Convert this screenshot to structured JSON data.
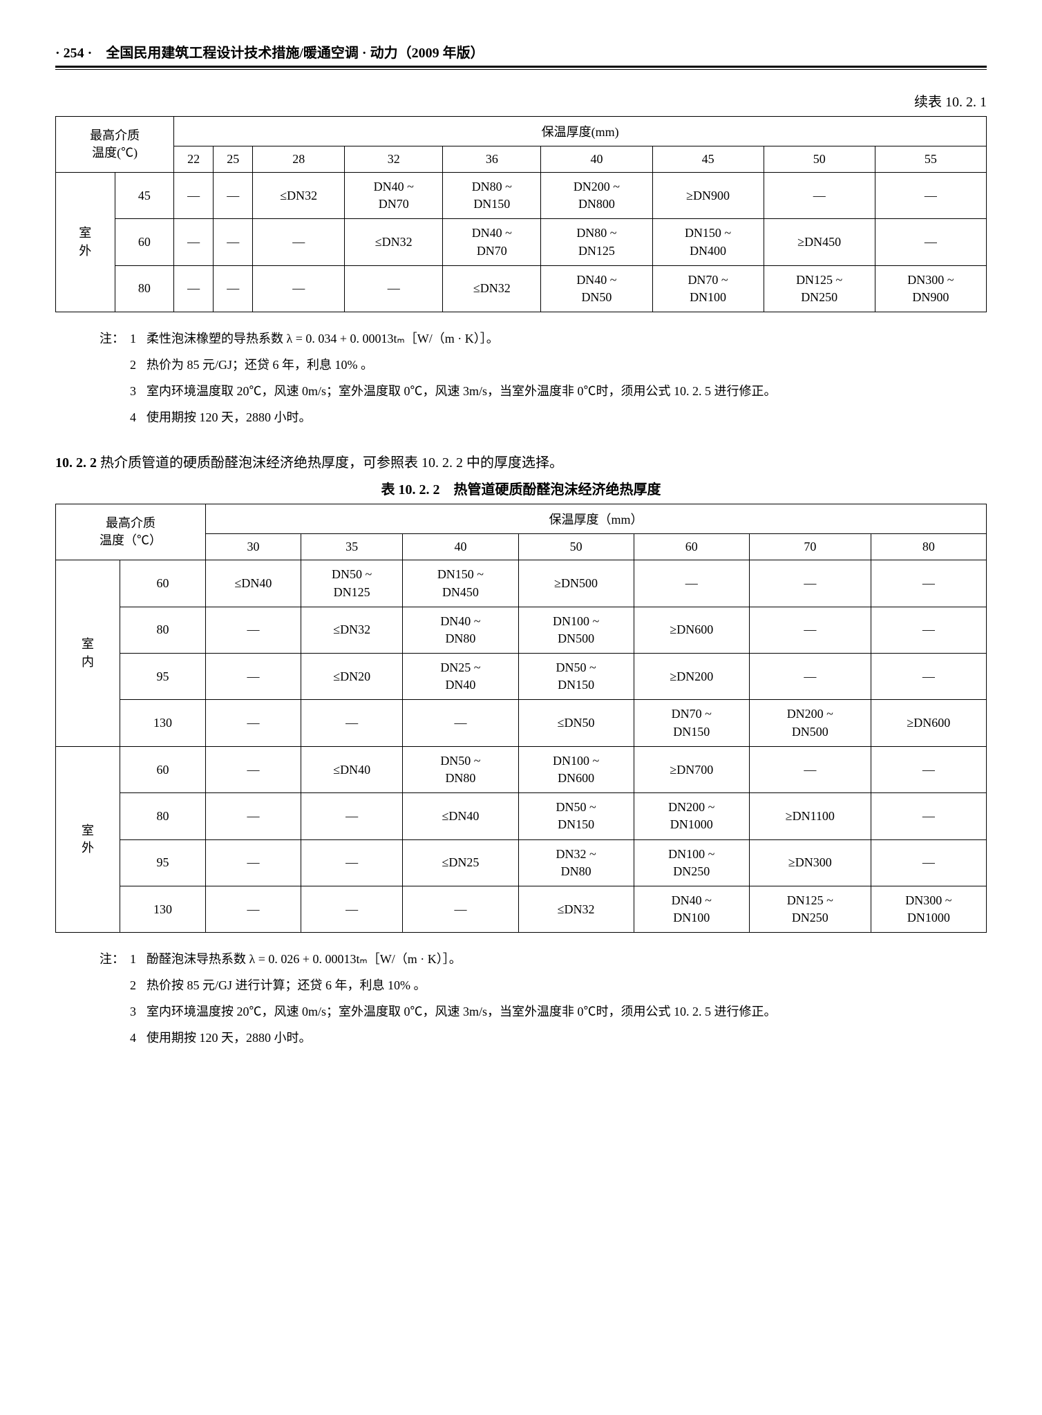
{
  "page_header": "· 254 ·　全国民用建筑工程设计技术措施/暖通空调 · 动力（2009 年版）",
  "table1": {
    "caption": "续表 10. 2. 1",
    "row_header_label": "最高介质\n温度(℃)",
    "col_group_label": "保温厚度(mm)",
    "columns": [
      "22",
      "25",
      "28",
      "32",
      "36",
      "40",
      "45",
      "50",
      "55"
    ],
    "side_label": "室\n外",
    "rows": [
      {
        "t": "45",
        "cells": [
          "—",
          "—",
          "≤DN32",
          "DN40 ~\nDN70",
          "DN80 ~\nDN150",
          "DN200 ~\nDN800",
          "≥DN900",
          "—",
          "—"
        ]
      },
      {
        "t": "60",
        "cells": [
          "—",
          "—",
          "—",
          "≤DN32",
          "DN40 ~\nDN70",
          "DN80 ~\nDN125",
          "DN150 ~\nDN400",
          "≥DN450",
          "—"
        ]
      },
      {
        "t": "80",
        "cells": [
          "—",
          "—",
          "—",
          "—",
          "≤DN32",
          "DN40 ~\nDN50",
          "DN70 ~\nDN100",
          "DN125 ~\nDN250",
          "DN300 ~\nDN900"
        ]
      }
    ]
  },
  "notes1": {
    "label": "注：",
    "items": [
      "柔性泡沫橡塑的导热系数 λ = 0. 034 + 0. 00013tₘ［W/（m · K）］。",
      "热价为 85 元/GJ；还贷 6 年，利息 10% 。",
      "室内环境温度取 20℃，风速 0m/s；室外温度取 0℃，风速 3m/s，当室外温度非 0℃时，须用公式 10. 2. 5 进行修正。",
      "使用期按 120 天，2880 小时。"
    ]
  },
  "section": {
    "num": "10. 2. 2",
    "text": "热介质管道的硬质酚醛泡沫经济绝热厚度，可参照表 10. 2. 2 中的厚度选择。"
  },
  "table2": {
    "caption": "表 10. 2. 2　热管道硬质酚醛泡沫经济绝热厚度",
    "row_header_label": "最高介质\n温度（℃）",
    "col_group_label": "保温厚度（mm）",
    "columns": [
      "30",
      "35",
      "40",
      "50",
      "60",
      "70",
      "80"
    ],
    "groups": [
      {
        "side": "室\n内",
        "rows": [
          {
            "t": "60",
            "cells": [
              "≤DN40",
              "DN50 ~\nDN125",
              "DN150 ~\nDN450",
              "≥DN500",
              "—",
              "—",
              "—"
            ]
          },
          {
            "t": "80",
            "cells": [
              "—",
              "≤DN32",
              "DN40 ~\nDN80",
              "DN100 ~\nDN500",
              "≥DN600",
              "—",
              "—"
            ]
          },
          {
            "t": "95",
            "cells": [
              "—",
              "≤DN20",
              "DN25 ~\nDN40",
              "DN50 ~\nDN150",
              "≥DN200",
              "—",
              "—"
            ]
          },
          {
            "t": "130",
            "cells": [
              "—",
              "—",
              "—",
              "≤DN50",
              "DN70 ~\nDN150",
              "DN200 ~\nDN500",
              "≥DN600"
            ]
          }
        ]
      },
      {
        "side": "室\n外",
        "rows": [
          {
            "t": "60",
            "cells": [
              "—",
              "≤DN40",
              "DN50 ~\nDN80",
              "DN100 ~\nDN600",
              "≥DN700",
              "—",
              "—"
            ]
          },
          {
            "t": "80",
            "cells": [
              "—",
              "—",
              "≤DN40",
              "DN50 ~\nDN150",
              "DN200 ~\nDN1000",
              "≥DN1100",
              "—"
            ]
          },
          {
            "t": "95",
            "cells": [
              "—",
              "—",
              "≤DN25",
              "DN32 ~\nDN80",
              "DN100 ~\nDN250",
              "≥DN300",
              "—"
            ]
          },
          {
            "t": "130",
            "cells": [
              "—",
              "—",
              "—",
              "≤DN32",
              "DN40 ~\nDN100",
              "DN125 ~\nDN250",
              "DN300 ~\nDN1000"
            ]
          }
        ]
      }
    ]
  },
  "notes2": {
    "label": "注：",
    "items": [
      "酚醛泡沫导热系数 λ = 0. 026 + 0. 00013tₘ［W/（m · K）］。",
      "热价按 85 元/GJ 进行计算；还贷 6 年，利息 10% 。",
      "室内环境温度按 20℃，风速 0m/s；室外温度取 0℃，风速 3m/s，当室外温度非 0℃时，须用公式 10. 2. 5 进行修正。",
      "使用期按 120 天，2880 小时。"
    ]
  }
}
